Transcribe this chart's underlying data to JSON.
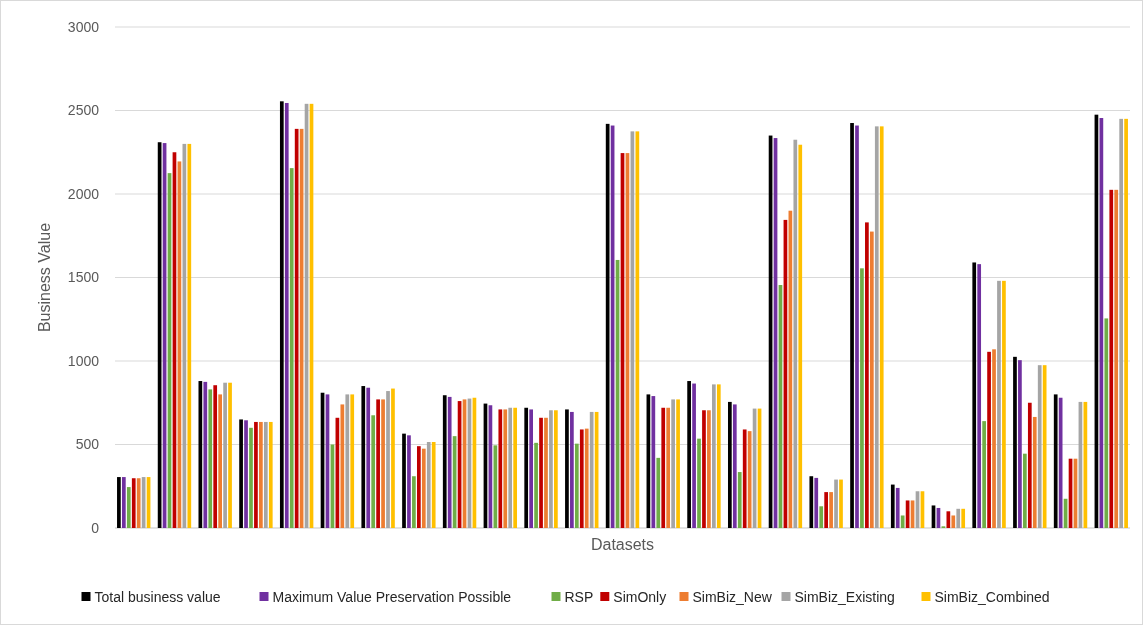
{
  "chart_data": {
    "type": "bar",
    "xlabel": "Datasets",
    "ylabel": "Business Value",
    "categories": [
      null,
      null,
      null,
      null,
      null,
      null,
      null,
      null,
      null,
      null,
      null,
      null,
      null,
      null,
      null,
      null,
      null,
      null,
      null,
      null,
      null,
      null,
      null,
      null,
      null
    ],
    "series": [
      {
        "name": "Total business value",
        "color": "#000000",
        "values": [
          305,
          2310,
          880,
          650,
          2555,
          810,
          850,
          565,
          795,
          745,
          720,
          710,
          2420,
          800,
          880,
          755,
          2350,
          310,
          2425,
          260,
          135,
          1590,
          1025,
          800,
          2475
        ]
      },
      {
        "name": "Maximum Value Preservation Possible",
        "color": "#7030a0",
        "values": [
          305,
          2305,
          875,
          645,
          2545,
          800,
          840,
          555,
          785,
          735,
          710,
          695,
          2410,
          790,
          865,
          740,
          2335,
          300,
          2410,
          240,
          120,
          1580,
          1005,
          780,
          2455
        ]
      },
      {
        "name": "RSP",
        "color": "#70ad47",
        "values": [
          245,
          2125,
          830,
          600,
          2155,
          500,
          675,
          310,
          550,
          495,
          510,
          505,
          1605,
          420,
          535,
          335,
          1455,
          130,
          1555,
          75,
          10,
          640,
          445,
          175,
          1255
        ]
      },
      {
        "name": "SimOnly",
        "color": "#c00000",
        "values": [
          298,
          2250,
          855,
          635,
          2390,
          660,
          770,
          490,
          760,
          710,
          660,
          590,
          2245,
          720,
          705,
          590,
          1845,
          215,
          1830,
          165,
          100,
          1055,
          750,
          415,
          2025
        ]
      },
      {
        "name": "SimBiz_New",
        "color": "#ed7d31",
        "values": [
          298,
          2195,
          800,
          635,
          2390,
          740,
          770,
          475,
          770,
          710,
          660,
          595,
          2245,
          720,
          705,
          580,
          1900,
          215,
          1775,
          165,
          75,
          1070,
          665,
          415,
          2025
        ]
      },
      {
        "name": "SimBiz_Existing",
        "color": "#a5a5a5",
        "values": [
          305,
          2300,
          870,
          635,
          2540,
          800,
          820,
          515,
          775,
          720,
          705,
          695,
          2375,
          770,
          860,
          715,
          2325,
          290,
          2405,
          220,
          115,
          1480,
          975,
          755,
          2450
        ]
      },
      {
        "name": "SimBiz_Combined",
        "color": "#ffc000",
        "values": [
          305,
          2300,
          870,
          635,
          2540,
          800,
          835,
          515,
          780,
          720,
          705,
          695,
          2375,
          770,
          860,
          715,
          2295,
          290,
          2405,
          220,
          115,
          1480,
          975,
          755,
          2450
        ]
      }
    ],
    "ylim": [
      0,
      3000
    ],
    "yticks": [
      0,
      500,
      1000,
      1500,
      2000,
      2500,
      3000
    ],
    "grid": "y",
    "legend": "bottom"
  }
}
